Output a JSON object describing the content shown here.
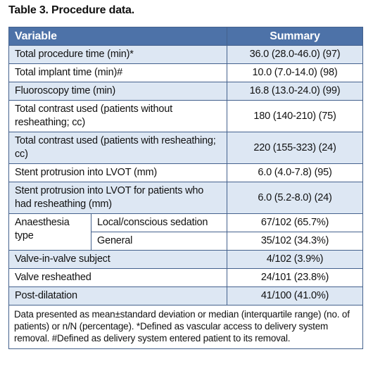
{
  "title": "Table 3. Procedure data.",
  "table": {
    "header": [
      "Variable",
      "Summary"
    ],
    "rows": [
      [
        "Total procedure time (min)*",
        "36.0 (28.0-46.0) (97)"
      ],
      [
        "Total implant time (min)#",
        "10.0 (7.0-14.0) (98)"
      ],
      [
        "Fluoroscopy time (min)",
        "16.8 (13.0-24.0) (99)"
      ],
      [
        "Total contrast used (patients without resheathing; cc)",
        "180 (140-210) (75)"
      ],
      [
        "Total contrast used (patients with resheathing; cc)",
        "220 (155-323) (24)"
      ],
      [
        "Stent protrusion into LVOT (mm)",
        "6.0 (4.0-7.8) (95)"
      ],
      [
        "Stent protrusion into LVOT for patients who had resheathing (mm)",
        "6.0 (5.2-8.0) (24)"
      ],
      {
        "label": "Anaesthesia type",
        "subrows": [
          [
            "Local/conscious sedation",
            "67/102 (65.7%)"
          ],
          [
            "General",
            "35/102 (34.3%)"
          ]
        ]
      },
      [
        "Valve-in-valve subject",
        "4/102 (3.9%)"
      ],
      [
        "Valve resheathed",
        "24/101 (23.8%)"
      ],
      [
        "Post-dilatation",
        "41/100 (41.0%)"
      ]
    ],
    "footnote": "Data presented as mean±standard deviation or median (interquartile range) (no. of patients) or n/N (percentage). *Defined as vascular access to delivery system removal. #Defined as delivery system entered patient to its removal."
  }
}
